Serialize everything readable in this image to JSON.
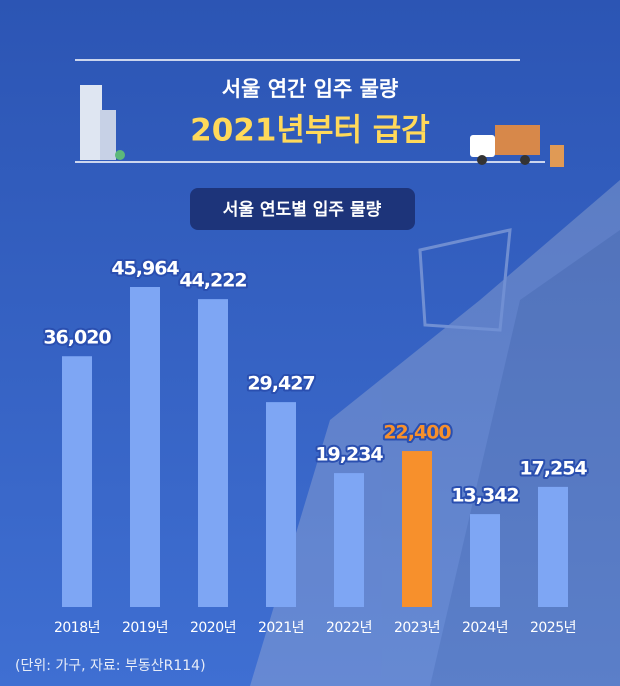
{
  "chart_data": {
    "type": "bar",
    "title": "서울 연간 입주 물량",
    "subtitle": "2021년부터 급감",
    "badge": "서울 연도별 입주 물량",
    "note": "(단위: 가구, 자료: 부동산R114)",
    "categories": [
      "2018년",
      "2019년",
      "2020년",
      "2021년",
      "2022년",
      "2023년",
      "2024년",
      "2025년"
    ],
    "values": [
      36020,
      45964,
      44222,
      29427,
      19234,
      22400,
      13342,
      17254
    ],
    "value_labels": [
      "36,020",
      "45,964",
      "44,222",
      "29,427",
      "19,234",
      "22,400",
      "13,342",
      "17,254"
    ],
    "colors": [
      "#7ea6f4",
      "#7ea6f4",
      "#7ea6f4",
      "#7ea6f4",
      "#7ea6f4",
      "#f7902c",
      "#7ea6f4",
      "#7ea6f4"
    ],
    "label_colors": [
      "#ffffff",
      "#ffffff",
      "#ffffff",
      "#ffffff",
      "#ffffff",
      "#f7902c",
      "#ffffff",
      "#ffffff"
    ]
  }
}
